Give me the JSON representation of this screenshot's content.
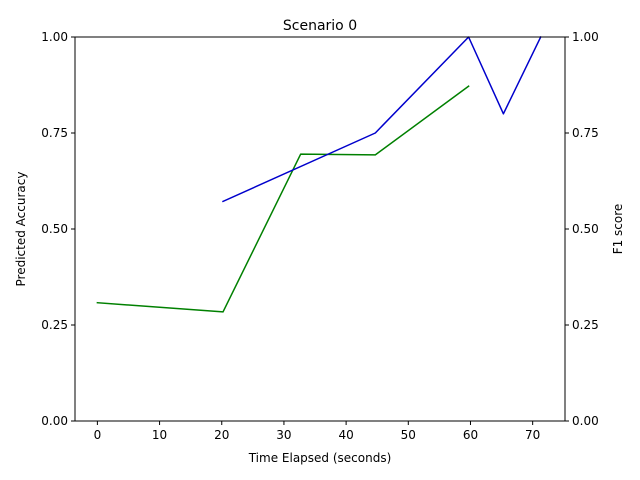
{
  "chart_data": {
    "type": "line",
    "title": "Scenario 0",
    "xlabel": "Time Elapsed (seconds)",
    "ylabel_left": "Predicted Accuracy",
    "ylabel_right": "F1 score",
    "xlim": [
      -3.6,
      75.2
    ],
    "ylim_left": [
      0,
      1
    ],
    "ylim_right": [
      0,
      1
    ],
    "x_ticks": [
      0,
      10,
      20,
      30,
      40,
      50,
      60,
      70
    ],
    "y_ticks_left": [
      "0.00",
      "0.25",
      "0.50",
      "0.75",
      "1.00"
    ],
    "y_ticks_right": [
      "0.00",
      "0.25",
      "0.50",
      "0.75",
      "1.00"
    ],
    "grid": false,
    "series": [
      {
        "axis": "left",
        "color": "#008000",
        "points": [
          {
            "x": 0,
            "y": 0.308
          },
          {
            "x": 20.2,
            "y": 0.284
          },
          {
            "x": 32.7,
            "y": 0.695
          },
          {
            "x": 44.7,
            "y": 0.693
          },
          {
            "x": 59.7,
            "y": 0.872
          }
        ]
      },
      {
        "axis": "right",
        "color": "#0000cc",
        "points": [
          {
            "x": 20.2,
            "y": 0.572
          },
          {
            "x": 44.7,
            "y": 0.75
          },
          {
            "x": 59.7,
            "y": 1.0
          },
          {
            "x": 65.3,
            "y": 0.8
          },
          {
            "x": 71.3,
            "y": 1.0
          }
        ]
      }
    ]
  }
}
